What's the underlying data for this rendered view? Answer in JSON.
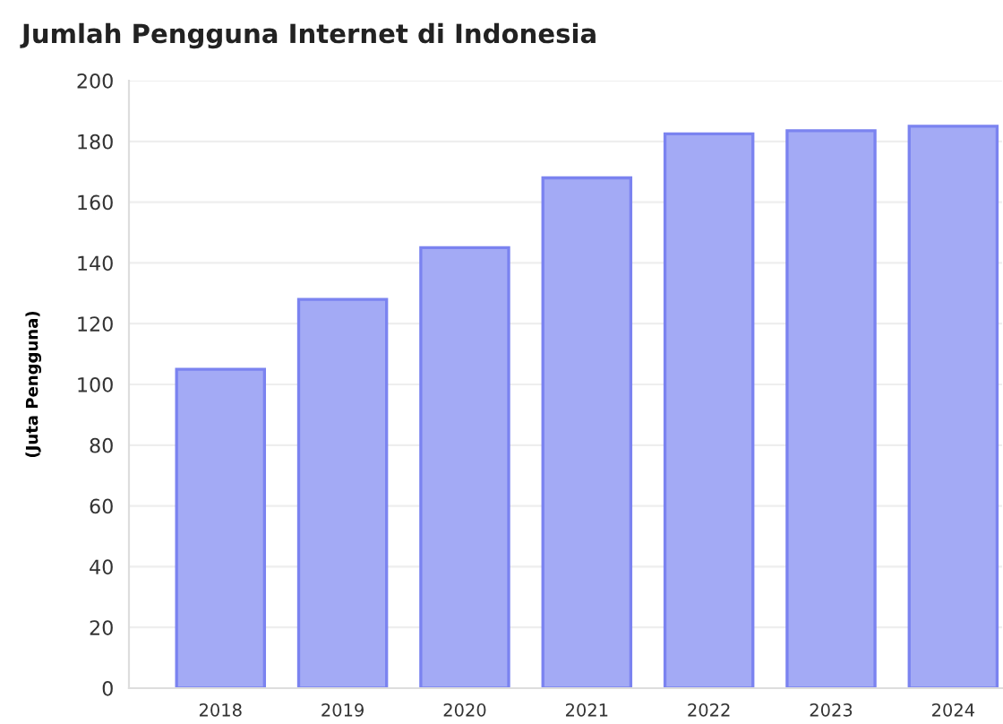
{
  "chart_data": {
    "type": "bar",
    "title": "Jumlah Pengguna Internet di Indonesia",
    "ylabel": "(Juta Pengguna)",
    "categories": [
      "2018",
      "2019",
      "2020",
      "2021",
      "2022",
      "2023",
      "2024"
    ],
    "values": [
      105,
      128,
      145,
      168,
      182.5,
      183.5,
      185
    ],
    "color": "#a3aaf5",
    "ylim": [
      0,
      200
    ],
    "yticks": [
      0,
      20,
      40,
      60,
      80,
      100,
      120,
      140,
      160,
      180,
      200
    ],
    "grid": "y"
  }
}
